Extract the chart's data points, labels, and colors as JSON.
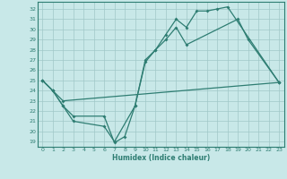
{
  "title": "",
  "xlabel": "Humidex (Indice chaleur)",
  "bg_color": "#c8e8e8",
  "grid_color": "#a0c8c8",
  "line_color": "#2e7d72",
  "xlim": [
    -0.5,
    23.5
  ],
  "ylim": [
    18.5,
    32.7
  ],
  "yticks": [
    19,
    20,
    21,
    22,
    23,
    24,
    25,
    26,
    27,
    28,
    29,
    30,
    31,
    32
  ],
  "xticks": [
    0,
    1,
    2,
    3,
    4,
    5,
    6,
    7,
    8,
    9,
    10,
    11,
    12,
    13,
    14,
    15,
    16,
    17,
    18,
    19,
    20,
    21,
    22,
    23
  ],
  "segments": {
    "line1": [
      [
        0,
        25.0
      ],
      [
        1,
        24.0
      ],
      [
        2,
        22.5
      ],
      [
        3,
        21.5
      ],
      [
        6,
        21.5
      ],
      [
        7,
        18.9
      ],
      [
        8,
        19.5
      ],
      [
        9,
        22.5
      ],
      [
        10,
        27.0
      ],
      [
        11,
        28.0
      ],
      [
        12,
        29.0
      ],
      [
        13,
        30.2
      ],
      [
        14,
        28.5
      ],
      [
        19,
        31.0
      ],
      [
        20,
        29.0
      ],
      [
        23,
        24.8
      ]
    ],
    "line2": [
      [
        0,
        25.0
      ],
      [
        1,
        24.0
      ],
      [
        2,
        22.5
      ],
      [
        3,
        21.0
      ],
      [
        6,
        20.5
      ],
      [
        7,
        19.0
      ],
      [
        9,
        22.5
      ],
      [
        10,
        26.8
      ],
      [
        11,
        28.0
      ],
      [
        12,
        29.5
      ],
      [
        13,
        31.0
      ],
      [
        14,
        30.2
      ],
      [
        15,
        31.8
      ],
      [
        16,
        31.8
      ],
      [
        17,
        32.0
      ],
      [
        18,
        32.2
      ],
      [
        23,
        24.8
      ]
    ],
    "line3": [
      [
        0,
        25.0
      ],
      [
        1,
        24.0
      ],
      [
        2,
        23.0
      ],
      [
        23,
        24.8
      ]
    ]
  }
}
